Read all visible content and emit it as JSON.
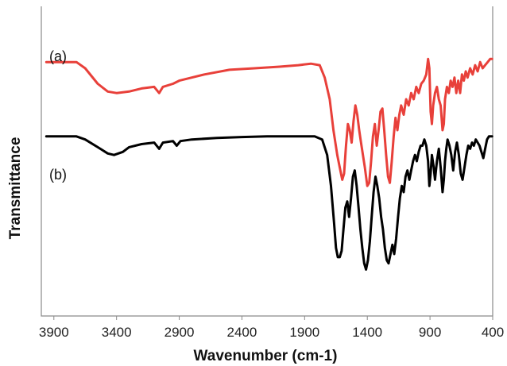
{
  "chart_data": {
    "type": "line",
    "xlabel": "Wavenumber (cm-1)",
    "ylabel": "Transmittance",
    "xlim": [
      4000,
      400
    ],
    "x_reversed": true,
    "ylim": [
      0,
      100
    ],
    "y_ticks_shown": false,
    "grid": false,
    "x_ticks": [
      3900,
      3400,
      2900,
      2400,
      1900,
      1400,
      900,
      400
    ],
    "x_tick_labels": [
      "3900",
      "3400",
      "2900",
      "2400",
      "1900",
      "1400",
      "900",
      "400"
    ],
    "series": [
      {
        "name": "(a)",
        "color": "#e8403a",
        "points": [
          [
            3960,
            82
          ],
          [
            3800,
            82
          ],
          [
            3720,
            82
          ],
          [
            3650,
            80
          ],
          [
            3550,
            75
          ],
          [
            3470,
            72.5
          ],
          [
            3400,
            72
          ],
          [
            3300,
            72.5
          ],
          [
            3200,
            73.5
          ],
          [
            3100,
            74
          ],
          [
            3060,
            72
          ],
          [
            3030,
            74
          ],
          [
            2950,
            75
          ],
          [
            2900,
            76
          ],
          [
            2800,
            77
          ],
          [
            2700,
            78
          ],
          [
            2500,
            79.5
          ],
          [
            2300,
            80
          ],
          [
            2100,
            80.5
          ],
          [
            1950,
            81
          ],
          [
            1850,
            81.5
          ],
          [
            1780,
            81
          ],
          [
            1740,
            77
          ],
          [
            1700,
            70
          ],
          [
            1670,
            60
          ],
          [
            1640,
            52
          ],
          [
            1615,
            47
          ],
          [
            1600,
            44
          ],
          [
            1585,
            46
          ],
          [
            1570,
            55
          ],
          [
            1555,
            62
          ],
          [
            1540,
            60
          ],
          [
            1525,
            56
          ],
          [
            1510,
            63
          ],
          [
            1495,
            68
          ],
          [
            1480,
            65
          ],
          [
            1465,
            60
          ],
          [
            1450,
            56
          ],
          [
            1435,
            52
          ],
          [
            1420,
            48
          ],
          [
            1400,
            42
          ],
          [
            1385,
            43
          ],
          [
            1370,
            50
          ],
          [
            1355,
            58
          ],
          [
            1340,
            62
          ],
          [
            1325,
            55
          ],
          [
            1310,
            60
          ],
          [
            1295,
            66
          ],
          [
            1280,
            67
          ],
          [
            1265,
            60
          ],
          [
            1250,
            52
          ],
          [
            1235,
            45
          ],
          [
            1220,
            43
          ],
          [
            1205,
            50
          ],
          [
            1190,
            58
          ],
          [
            1175,
            64
          ],
          [
            1160,
            60
          ],
          [
            1145,
            65
          ],
          [
            1130,
            68
          ],
          [
            1110,
            65
          ],
          [
            1090,
            70
          ],
          [
            1070,
            68
          ],
          [
            1050,
            72
          ],
          [
            1030,
            70
          ],
          [
            1010,
            74
          ],
          [
            990,
            72
          ],
          [
            970,
            75
          ],
          [
            950,
            76
          ],
          [
            930,
            78
          ],
          [
            915,
            83
          ],
          [
            905,
            80
          ],
          [
            895,
            66
          ],
          [
            885,
            62
          ],
          [
            875,
            68
          ],
          [
            860,
            72
          ],
          [
            845,
            74
          ],
          [
            830,
            70
          ],
          [
            815,
            68
          ],
          [
            800,
            60
          ],
          [
            790,
            62
          ],
          [
            780,
            70
          ],
          [
            765,
            74
          ],
          [
            750,
            72
          ],
          [
            735,
            76
          ],
          [
            720,
            74
          ],
          [
            705,
            77
          ],
          [
            690,
            72
          ],
          [
            675,
            76
          ],
          [
            660,
            72
          ],
          [
            645,
            78
          ],
          [
            630,
            76
          ],
          [
            615,
            79
          ],
          [
            600,
            77
          ],
          [
            580,
            80
          ],
          [
            560,
            78
          ],
          [
            540,
            81
          ],
          [
            520,
            79
          ],
          [
            500,
            82
          ],
          [
            480,
            80
          ],
          [
            460,
            81
          ],
          [
            440,
            82
          ],
          [
            420,
            83
          ],
          [
            405,
            83
          ]
        ]
      },
      {
        "name": "(b)",
        "color": "#000000",
        "points": [
          [
            3960,
            58
          ],
          [
            3800,
            58
          ],
          [
            3720,
            58
          ],
          [
            3650,
            57
          ],
          [
            3550,
            54.5
          ],
          [
            3470,
            52.5
          ],
          [
            3420,
            52
          ],
          [
            3350,
            53
          ],
          [
            3300,
            54.5
          ],
          [
            3200,
            55.5
          ],
          [
            3100,
            56
          ],
          [
            3060,
            54
          ],
          [
            3030,
            56
          ],
          [
            2950,
            56.5
          ],
          [
            2920,
            55
          ],
          [
            2890,
            56.5
          ],
          [
            2800,
            57
          ],
          [
            2600,
            57.5
          ],
          [
            2400,
            57.8
          ],
          [
            2200,
            58
          ],
          [
            2000,
            58
          ],
          [
            1900,
            58
          ],
          [
            1820,
            58
          ],
          [
            1760,
            57
          ],
          [
            1720,
            52
          ],
          [
            1690,
            42
          ],
          [
            1665,
            30
          ],
          [
            1650,
            22
          ],
          [
            1635,
            19
          ],
          [
            1620,
            19
          ],
          [
            1605,
            21
          ],
          [
            1590,
            28
          ],
          [
            1575,
            35
          ],
          [
            1560,
            37
          ],
          [
            1545,
            32
          ],
          [
            1530,
            38
          ],
          [
            1515,
            45
          ],
          [
            1500,
            47
          ],
          [
            1485,
            42
          ],
          [
            1470,
            35
          ],
          [
            1455,
            28
          ],
          [
            1440,
            22
          ],
          [
            1425,
            17
          ],
          [
            1410,
            15
          ],
          [
            1395,
            18
          ],
          [
            1380,
            24
          ],
          [
            1365,
            32
          ],
          [
            1350,
            40
          ],
          [
            1335,
            45
          ],
          [
            1320,
            42
          ],
          [
            1305,
            38
          ],
          [
            1290,
            32
          ],
          [
            1275,
            28
          ],
          [
            1260,
            22
          ],
          [
            1245,
            18
          ],
          [
            1230,
            17
          ],
          [
            1215,
            20
          ],
          [
            1200,
            23
          ],
          [
            1185,
            20
          ],
          [
            1170,
            25
          ],
          [
            1155,
            32
          ],
          [
            1140,
            38
          ],
          [
            1125,
            42
          ],
          [
            1110,
            40
          ],
          [
            1095,
            45
          ],
          [
            1080,
            47
          ],
          [
            1065,
            44
          ],
          [
            1050,
            47
          ],
          [
            1035,
            50
          ],
          [
            1020,
            52
          ],
          [
            1005,
            50
          ],
          [
            990,
            53
          ],
          [
            975,
            55
          ],
          [
            960,
            55
          ],
          [
            945,
            57
          ],
          [
            930,
            55
          ],
          [
            915,
            50
          ],
          [
            905,
            42
          ],
          [
            895,
            46
          ],
          [
            885,
            52
          ],
          [
            870,
            48
          ],
          [
            860,
            44
          ],
          [
            845,
            50
          ],
          [
            830,
            54
          ],
          [
            815,
            48
          ],
          [
            800,
            40
          ],
          [
            790,
            44
          ],
          [
            780,
            50
          ],
          [
            770,
            54
          ],
          [
            760,
            57
          ],
          [
            745,
            55
          ],
          [
            730,
            52
          ],
          [
            715,
            47
          ],
          [
            700,
            53
          ],
          [
            685,
            56
          ],
          [
            670,
            52
          ],
          [
            655,
            46
          ],
          [
            640,
            44
          ],
          [
            625,
            48
          ],
          [
            610,
            52
          ],
          [
            595,
            55
          ],
          [
            580,
            54
          ],
          [
            565,
            56
          ],
          [
            550,
            55
          ],
          [
            535,
            57
          ],
          [
            520,
            56
          ],
          [
            505,
            55
          ],
          [
            490,
            53
          ],
          [
            475,
            51
          ],
          [
            460,
            54
          ],
          [
            445,
            57
          ],
          [
            430,
            58
          ],
          [
            415,
            58
          ],
          [
            405,
            58
          ]
        ]
      }
    ]
  }
}
